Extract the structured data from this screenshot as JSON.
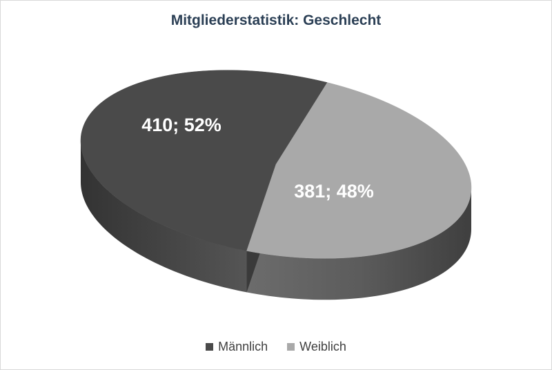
{
  "chart_data": {
    "type": "pie",
    "title": "Mitgliederstatistik: Geschlecht",
    "categories": [
      "Männlich",
      "Weiblich"
    ],
    "values": [
      410,
      381
    ],
    "data_labels": [
      "410; 52%",
      "381; 48%"
    ],
    "colors": [
      "#4a4a4a",
      "#a9a9a9"
    ],
    "legend_position": "bottom",
    "style": "3d"
  }
}
